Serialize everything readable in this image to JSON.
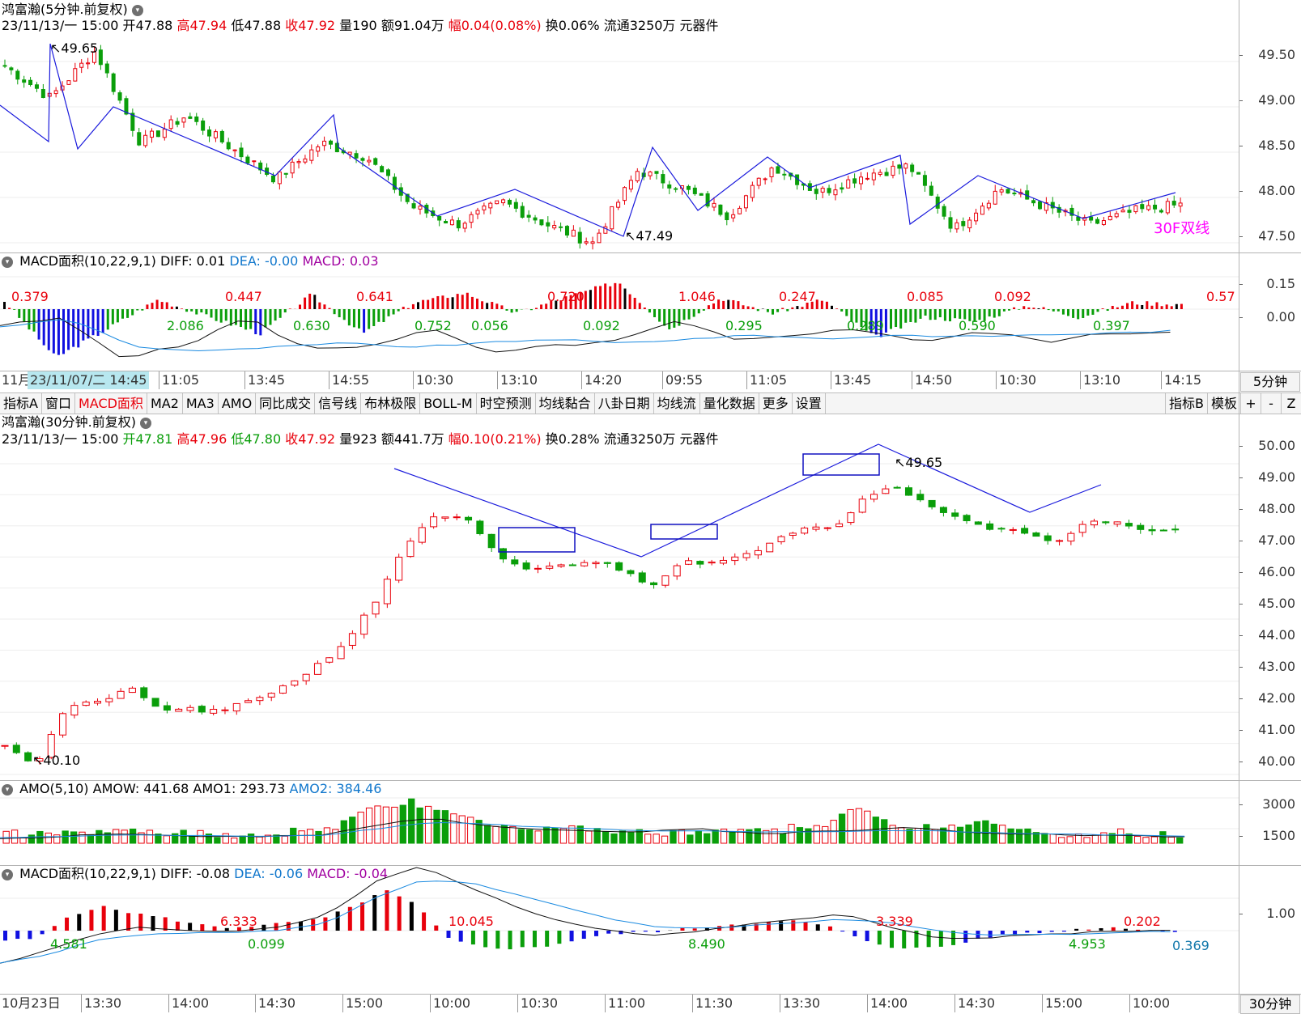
{
  "colors": {
    "up": "#e8000b",
    "down": "#0a9e0a",
    "trend": "#1a1adc",
    "blue_bar": "#1010e0",
    "white_line": "#111111",
    "dea_line": "#1a8ae0",
    "accent_magenta": "#ff00ff",
    "macd_purple": "#a000a0"
  },
  "top": {
    "title": "鸿富瀚(5分钟.前复权)",
    "chevron_icon": "chevron-down-icon",
    "info": {
      "date": "23/11/13/一 15:00",
      "open": "开47.88",
      "high": "高47.94",
      "low": "低47.88",
      "close": "收47.92",
      "volume": "量190",
      "amount": "额91.04万",
      "change": "幅0.04(0.08%)",
      "turnover": "换0.06%",
      "float": "流通3250万",
      "sector": "元器件"
    },
    "price_axis": [
      "49.50",
      "49.00",
      "48.50",
      "48.00",
      "47.50"
    ],
    "annotations": {
      "high": "49.65",
      "low": "47.49",
      "tag": "30F双线"
    }
  },
  "top_macd": {
    "title": "MACD面积(10,22,9,1)",
    "diff": "DIFF: 0.01",
    "dea": "DEA: -0.00",
    "macd": "MACD: 0.03",
    "axis": [
      "0.15",
      "0.00"
    ],
    "red_labels": [
      "0.379",
      "0.447",
      "0.641",
      "0.720",
      "1.046",
      "0.247",
      "0.085",
      "0.092",
      "0.57"
    ],
    "green_labels": [
      "2.086",
      "0.630",
      "0.752",
      "0.056",
      "0.092",
      "0.295",
      "0.289",
      "0.590",
      "0.397"
    ]
  },
  "top_xaxis": {
    "labels": [
      "11月",
      "23/11/07/二 14:45",
      "11:05",
      "13:45",
      "14:55",
      "10:30",
      "13:10",
      "14:20",
      "09:55",
      "11:05",
      "13:45",
      "14:50",
      "10:30",
      "13:10",
      "14:15"
    ],
    "period": "5分钟"
  },
  "toolbar": {
    "items": [
      "指标A",
      "窗口",
      "MACD面积",
      "MA2",
      "MA3",
      "AMO",
      "同比成交",
      "信号线",
      "布林极限",
      "BOLL-M",
      "时空预测",
      "均线黏合",
      "八卦日期",
      "均线流",
      "量化数据",
      "更多",
      "设置"
    ],
    "active": "MACD面积",
    "right": [
      "指标B",
      "模板",
      "+",
      "-",
      "Z"
    ]
  },
  "mid": {
    "title": "鸿富瀚(30分钟.前复权)",
    "info": {
      "date": "23/11/13/一 15:00",
      "open": "开47.81",
      "high": "高47.96",
      "low": "低47.80",
      "close": "收47.92",
      "volume": "量923",
      "amount": "额441.7万",
      "change": "幅0.10(0.21%)",
      "turnover": "换0.28%",
      "float": "流通3250万",
      "sector": "元器件"
    },
    "price_axis": [
      "50.00",
      "49.00",
      "48.00",
      "47.00",
      "46.00",
      "45.00",
      "44.00",
      "43.00",
      "42.00",
      "41.00",
      "40.00"
    ],
    "annotations": {
      "high": "49.65",
      "low": "40.10"
    }
  },
  "amo": {
    "title": "AMO(5,10)",
    "amow": "AMOW: 441.68",
    "amo1": "AMO1: 293.73",
    "amo2": "AMO2: 384.46",
    "axis": [
      "3000",
      "1500"
    ]
  },
  "bot_macd": {
    "title": "MACD面积(10,22,9,1)",
    "diff": "DIFF: -0.08",
    "dea": "DEA: -0.06",
    "macd": "MACD: -0.04",
    "axis": [
      "1.00"
    ],
    "labels_red": [
      "6.333",
      "10.045",
      "3.339",
      "0.202"
    ],
    "labels_green": [
      "4.581",
      "0.099",
      "8.490",
      "4.953"
    ],
    "label_teal": "0.369"
  },
  "bot_xaxis": {
    "labels": [
      "10月23日",
      "13:30",
      "14:00",
      "14:30",
      "15:00",
      "10:00",
      "10:30",
      "11:00",
      "11:30",
      "13:30",
      "14:00",
      "14:30",
      "15:00",
      "10:00"
    ],
    "period": "30分钟"
  }
}
